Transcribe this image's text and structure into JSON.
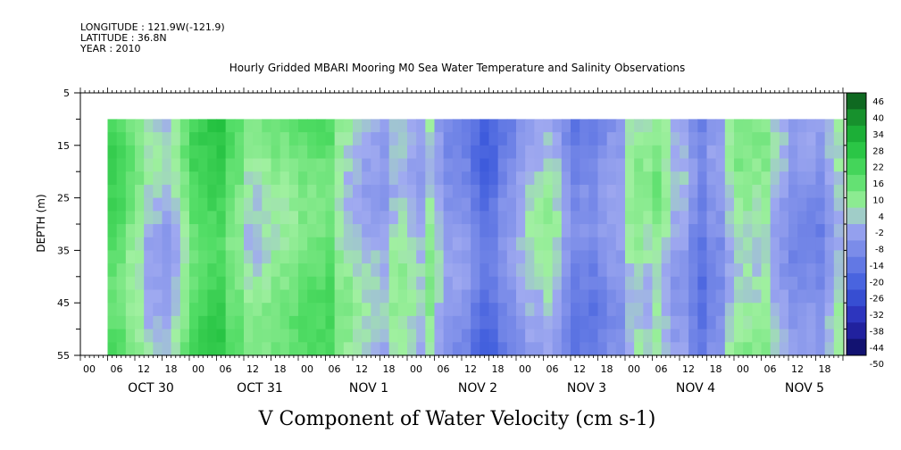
{
  "meta": {
    "longitude": "LONGITUDE : 121.9W(-121.9)",
    "latitude": "LATITUDE : 36.8N",
    "year": "YEAR : 2010"
  },
  "chart_data": {
    "type": "heatmap",
    "title": "Hourly Gridded MBARI Mooring M0 Sea Water Temperature and Salinity Observations",
    "xlabel": "V Component of Water Velocity (cm s-1)",
    "ylabel": "DEPTH (m)",
    "ylim": [
      5,
      55
    ],
    "yticks": [
      5,
      15,
      25,
      35,
      45,
      55
    ],
    "depth_range": [
      10,
      55
    ],
    "x_hour_ticks": [
      "00",
      "06",
      "12",
      "18",
      "00",
      "06",
      "12",
      "18",
      "00",
      "06",
      "12",
      "18",
      "00",
      "06",
      "12",
      "18",
      "00",
      "06",
      "12",
      "18",
      "00",
      "06",
      "12",
      "18",
      "00",
      "06",
      "12",
      "18"
    ],
    "days": [
      "OCT 30",
      "OCT 31",
      "NOV  1",
      "NOV  2",
      "NOV  3",
      "NOV  4",
      "NOV  5"
    ],
    "time_start": "OCT 30 06",
    "time_end": "NOV 5 23",
    "colorbar": {
      "levels": [
        -50,
        -44,
        -38,
        -32,
        -26,
        -20,
        -14,
        -8,
        -2,
        4,
        10,
        16,
        22,
        28,
        34,
        40,
        46
      ],
      "labels": [
        "46",
        "40",
        "34",
        "28",
        "22",
        "16",
        "10",
        "4",
        "-2",
        "-8",
        "-14",
        "-20",
        "-26",
        "-32",
        "-38",
        "-44",
        "-50"
      ]
    },
    "column_profile_approx": {
      "description_note": "",
      "day_segments": [
        {
          "day": "OCT 30",
          "dominant": "positive (green), weak negative lower right"
        },
        {
          "day": "OCT 31",
          "dominant": "strong positive (dark green) early, negative late"
        },
        {
          "day": "NOV  1",
          "dominant": "positive early, mixed later"
        },
        {
          "day": "NOV  2",
          "dominant": "mostly negative (blue)"
        },
        {
          "day": "NOV  3",
          "dominant": "negative with positive bands"
        },
        {
          "day": "NOV  4",
          "dominant": "mixed"
        },
        {
          "day": "NOV  5",
          "dominant": "mixed, positive mid-day"
        }
      ]
    }
  }
}
